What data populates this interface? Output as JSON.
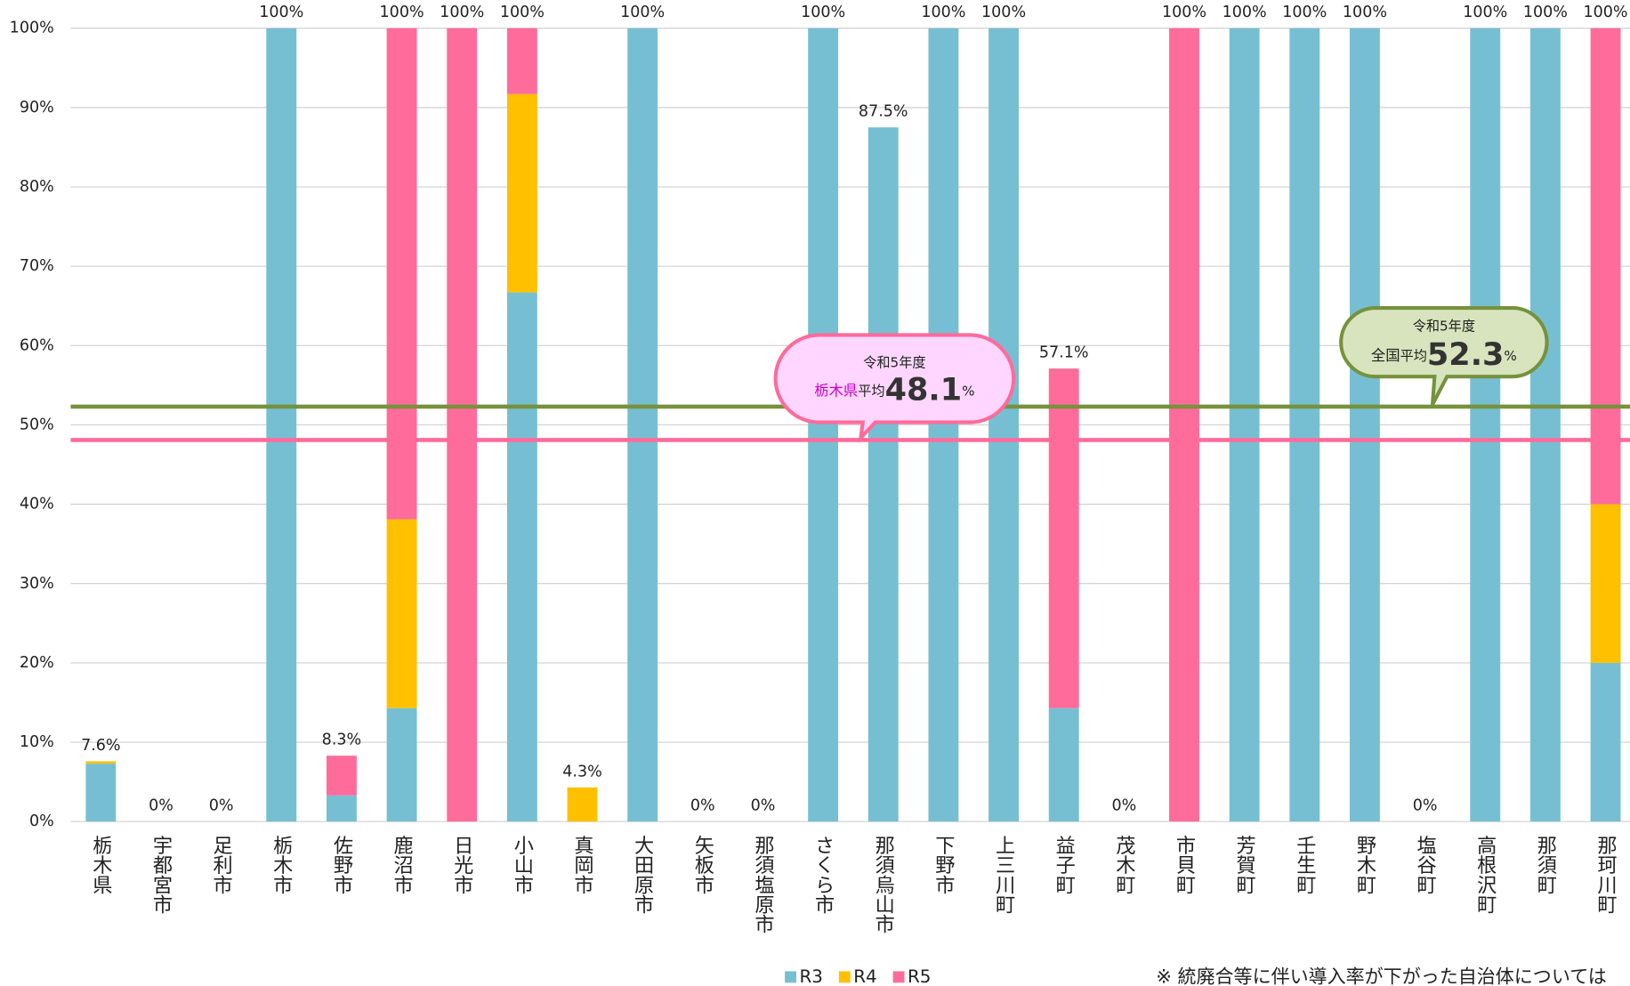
{
  "chart_data": {
    "type": "stacked_bar",
    "categories": [
      "栃木県",
      "宇都宮市",
      "足利市",
      "栃木市",
      "佐野市",
      "鹿沼市",
      "日光市",
      "小山市",
      "真岡市",
      "大田原市",
      "矢板市",
      "那須塩原市",
      "さくら市",
      "那須烏山市",
      "下野市",
      "上三川町",
      "益子町",
      "茂木町",
      "市貝町",
      "芳賀町",
      "壬生町",
      "野木町",
      "塩谷町",
      "高根沢町",
      "那須町",
      "那珂川町"
    ],
    "series": [
      {
        "name": "R3",
        "color": "#76bfd3",
        "values": [
          7.3,
          0,
          0,
          100,
          3.3,
          14.3,
          0,
          66.7,
          0,
          100,
          0,
          0,
          100,
          87.5,
          100,
          100,
          14.3,
          0,
          0,
          100,
          100,
          100,
          0,
          100,
          100,
          20
        ]
      },
      {
        "name": "R4",
        "color": "#ffc000",
        "values": [
          0.3,
          0,
          0,
          0,
          0,
          23.8,
          0,
          25,
          4.3,
          0,
          0,
          0,
          0,
          0,
          0,
          0,
          0,
          0,
          0,
          0,
          0,
          0,
          0,
          0,
          0,
          20
        ]
      },
      {
        "name": "R5",
        "color": "#ff6b9b",
        "values": [
          0,
          0,
          0,
          0,
          5.0,
          61.9,
          100,
          8.3,
          0,
          0,
          0,
          0,
          0,
          0,
          0,
          0,
          42.8,
          0,
          100,
          0,
          0,
          0,
          0,
          0,
          0,
          60
        ]
      }
    ],
    "total_labels": [
      "7.6%",
      "0%",
      "0%",
      "100%",
      "8.3%",
      "100%",
      "100%",
      "100%",
      "4.3%",
      "100%",
      "0%",
      "0%",
      "100%",
      "87.5%",
      "100%",
      "100%",
      "57.1%",
      "0%",
      "100%",
      "100%",
      "100%",
      "100%",
      "0%",
      "100%",
      "100%",
      "100%"
    ],
    "ylim": [
      0,
      100
    ],
    "yticks": [
      {
        "value": 0,
        "label": "0%"
      },
      {
        "value": 10,
        "label": "10%"
      },
      {
        "value": 20,
        "label": "20%"
      },
      {
        "value": 30,
        "label": "30%"
      },
      {
        "value": 40,
        "label": "40%"
      },
      {
        "value": 50,
        "label": "50%"
      },
      {
        "value": 60,
        "label": "60%"
      },
      {
        "value": 70,
        "label": "70%"
      },
      {
        "value": 80,
        "label": "80%"
      },
      {
        "value": 90,
        "label": "90%"
      },
      {
        "value": 100,
        "label": "100%"
      }
    ],
    "grid": true,
    "reference_lines": [
      {
        "value": 52.3,
        "color": "#76923c",
        "year": "令和5年度",
        "prefix": "全国",
        "label": "平均",
        "unit": "%"
      },
      {
        "value": 48.1,
        "color": "#ff6b9b",
        "year": "令和5年度",
        "prefix": "栃木県",
        "label": "平均",
        "unit": "%"
      }
    ],
    "footnote": "※ 統廃合等に伴い導入率が下がった自治体については"
  }
}
